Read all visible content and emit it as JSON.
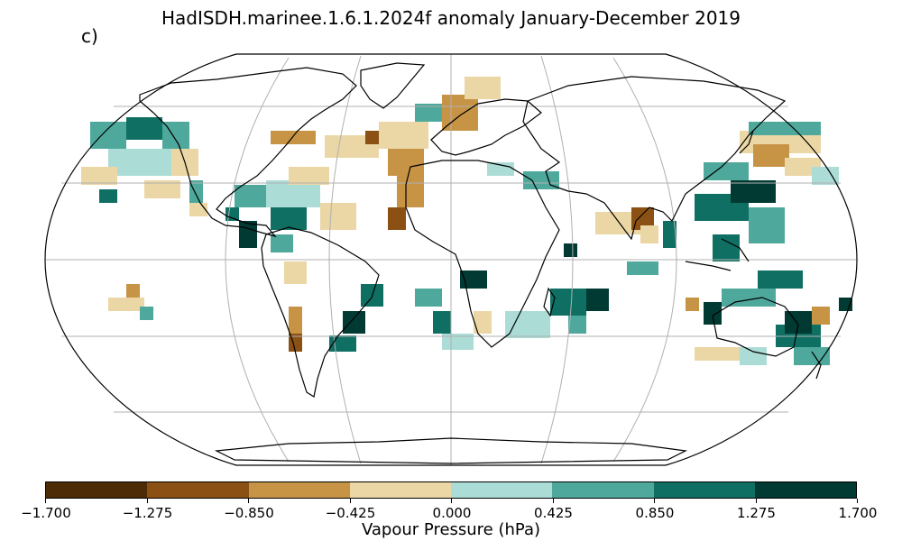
{
  "title": "HadISDH.marinee.1.6.1.2024f anomaly January-December 2019",
  "panel_label": "c)",
  "colorbar": {
    "label": "Vapour Pressure (hPa)",
    "ticks": [
      "−1.700",
      "−1.275",
      "−0.850",
      "−0.425",
      "0.000",
      "0.425",
      "0.850",
      "1.275",
      "1.700"
    ],
    "colors": [
      "#4d2b07",
      "#8b5114",
      "#c79446",
      "#ebd7a5",
      "#acdcd6",
      "#4fa89c",
      "#0f6f63",
      "#013a32"
    ]
  },
  "map": {
    "projection": "Robinson",
    "grid": "30 degree graticule",
    "ocean_color": "#ffffff",
    "coastline_color": "#000000"
  }
}
